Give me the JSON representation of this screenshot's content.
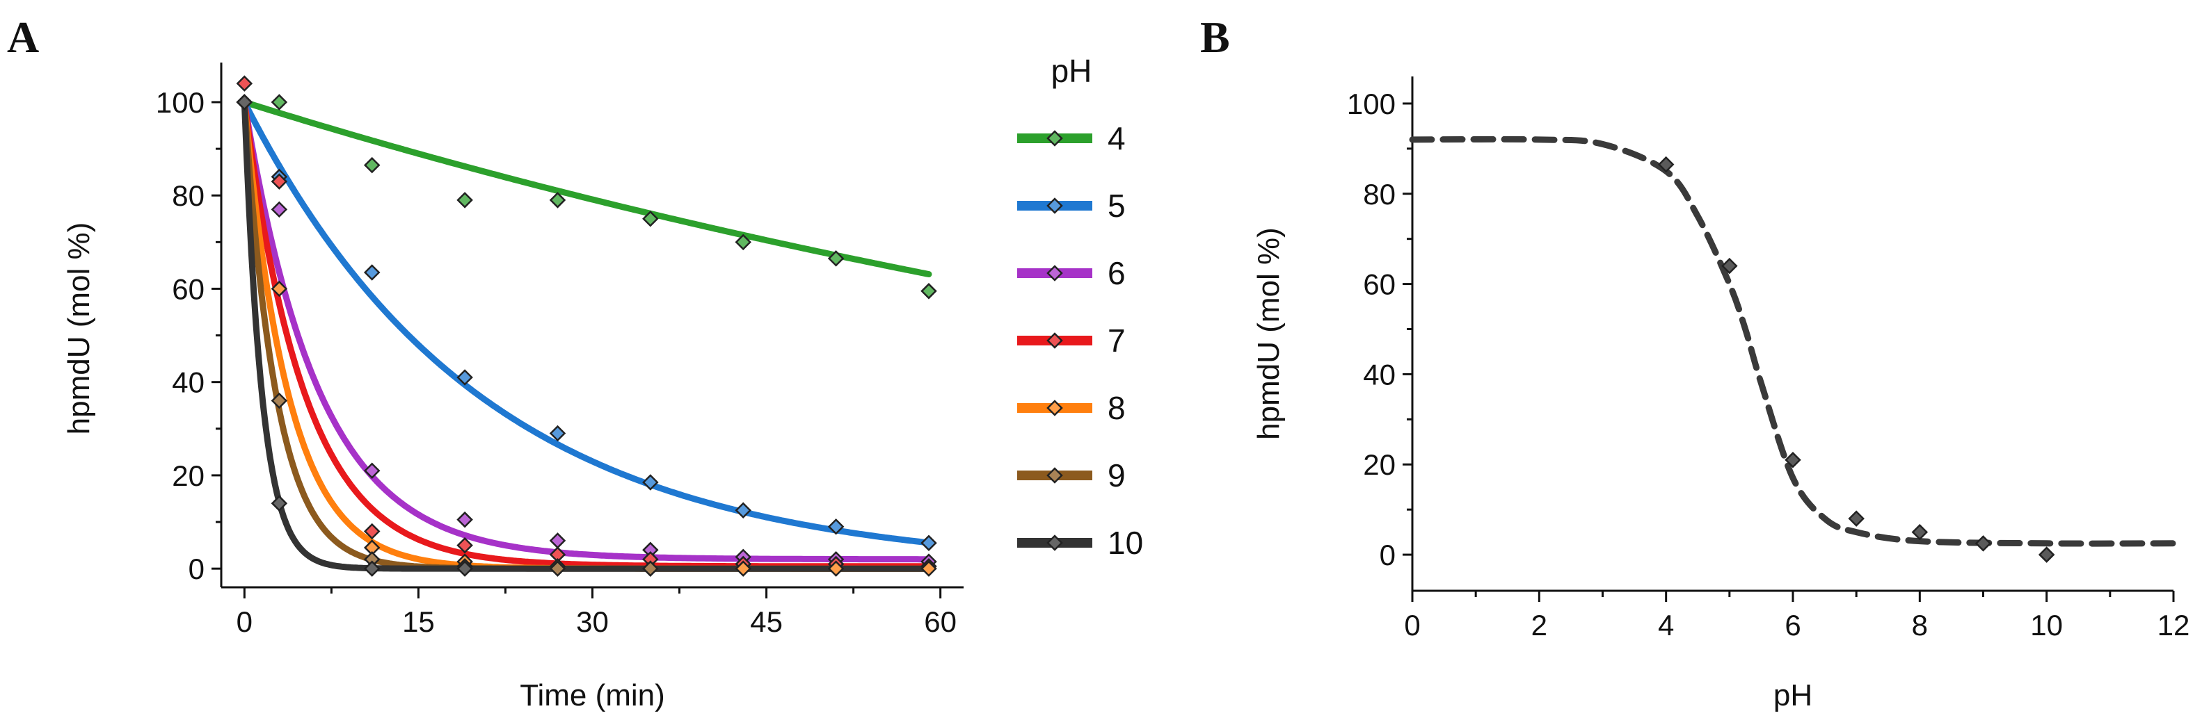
{
  "chart_data": [
    {
      "panel": "A",
      "type": "scatter",
      "xlabel": "Time (min)",
      "ylabel": "hpmdU (mol %)",
      "xlim": [
        -2,
        62
      ],
      "ylim": [
        -4,
        107
      ],
      "xticks": [
        0,
        15,
        30,
        45,
        60
      ],
      "yticks": [
        0,
        20,
        40,
        60,
        80,
        100
      ],
      "legend_title": "pH",
      "legend_position": "right",
      "grid": false,
      "series": [
        {
          "name": "4",
          "color": "#2ca02c",
          "k": 0.0078,
          "plateau": 0,
          "x": [
            0,
            3,
            11,
            19,
            27,
            35,
            43,
            51,
            59
          ],
          "y": [
            100,
            100,
            86.5,
            79,
            79,
            75,
            70,
            66.5,
            59.5
          ]
        },
        {
          "name": "5",
          "color": "#1f78d1",
          "k": 0.049,
          "plateau": 0,
          "x": [
            0,
            3,
            11,
            19,
            27,
            35,
            43,
            51,
            59
          ],
          "y": [
            100,
            84,
            63.5,
            41,
            29,
            18.5,
            12.5,
            9,
            5.5
          ]
        },
        {
          "name": "6",
          "color": "#a632c8",
          "k": 0.155,
          "plateau": 2,
          "x": [
            0,
            3,
            11,
            19,
            27,
            35,
            43,
            51,
            59
          ],
          "y": [
            100,
            77,
            21,
            10.5,
            6,
            4,
            2.5,
            2,
            1.5
          ]
        },
        {
          "name": "7",
          "color": "#e8191c",
          "k": 0.19,
          "plateau": 0.5,
          "x": [
            0,
            3,
            11,
            19,
            27,
            35,
            43,
            51,
            59
          ],
          "y": [
            104,
            83,
            8,
            5,
            3,
            2,
            1,
            1,
            0.5
          ]
        },
        {
          "name": "8",
          "color": "#ff7f0e",
          "k": 0.26,
          "plateau": 0,
          "x": [
            0,
            3,
            11,
            19,
            27,
            35,
            43,
            51,
            59
          ],
          "y": [
            100,
            60,
            4.5,
            1.5,
            0.5,
            0,
            0,
            0,
            0
          ]
        },
        {
          "name": "9",
          "color": "#8c5a1e",
          "k": 0.36,
          "plateau": 0,
          "x": [
            0,
            3,
            11,
            19,
            27,
            35
          ],
          "y": [
            100,
            36,
            2,
            0.5,
            0,
            0
          ]
        },
        {
          "name": "10",
          "color": "#333333",
          "k": 0.65,
          "plateau": 0,
          "x": [
            0,
            3,
            11,
            19
          ],
          "y": [
            100,
            14,
            0,
            0
          ]
        }
      ]
    },
    {
      "panel": "B",
      "type": "scatter",
      "xlabel": "pH",
      "ylabel": "hpmdU (mol %)",
      "xlim": [
        0,
        12
      ],
      "ylim": [
        -8,
        106
      ],
      "xticks": [
        0,
        2,
        4,
        6,
        8,
        10,
        12
      ],
      "yticks": [
        0,
        20,
        40,
        60,
        80,
        100
      ],
      "grid": false,
      "points": {
        "color": "#555555",
        "x": [
          4,
          5,
          6,
          7,
          8,
          9,
          10
        ],
        "y": [
          86.5,
          64,
          21,
          8,
          5,
          2.5,
          0
        ]
      },
      "fit": {
        "style": "dashed",
        "color": "#3a3a3a",
        "pH_values": [
          0,
          2,
          3,
          4,
          4.5,
          5,
          5.25,
          5.5,
          6,
          6.5,
          7,
          8,
          10,
          12
        ],
        "y_values": [
          92,
          92,
          91,
          85,
          75,
          60,
          50,
          38,
          17,
          8,
          5,
          3,
          2.5,
          2.5
        ]
      }
    }
  ]
}
